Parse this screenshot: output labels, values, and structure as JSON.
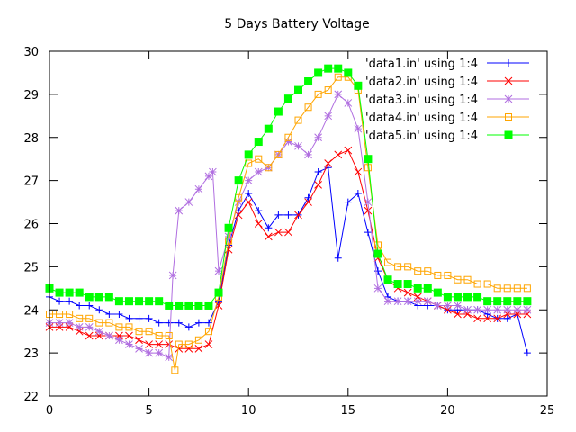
{
  "chart_data": {
    "type": "line",
    "title": "5 Days Battery Voltage",
    "xlabel": "",
    "ylabel": "",
    "xlim": [
      0,
      25
    ],
    "ylim": [
      22,
      30
    ],
    "xticks": [
      "0",
      "5",
      "10",
      "15",
      "20",
      "25"
    ],
    "yticks": [
      "22",
      "23",
      "24",
      "25",
      "26",
      "27",
      "28",
      "29",
      "30"
    ],
    "grid": false,
    "legend_position": "top-right",
    "series": [
      {
        "name": "'data1.in' using 1:4",
        "color": "#0000ff",
        "marker": "plus",
        "points": [
          [
            0,
            24.3
          ],
          [
            0.5,
            24.2
          ],
          [
            1,
            24.2
          ],
          [
            1.5,
            24.1
          ],
          [
            2,
            24.1
          ],
          [
            2.5,
            24.0
          ],
          [
            3,
            23.9
          ],
          [
            3.5,
            23.9
          ],
          [
            4,
            23.8
          ],
          [
            4.5,
            23.8
          ],
          [
            5,
            23.8
          ],
          [
            5.5,
            23.7
          ],
          [
            6,
            23.7
          ],
          [
            6.5,
            23.7
          ],
          [
            7,
            23.6
          ],
          [
            7.5,
            23.7
          ],
          [
            8,
            23.7
          ],
          [
            8.5,
            24.2
          ],
          [
            9,
            25.5
          ],
          [
            9.5,
            26.3
          ],
          [
            10,
            26.7
          ],
          [
            10.5,
            26.3
          ],
          [
            11,
            25.9
          ],
          [
            11.5,
            26.2
          ],
          [
            12,
            26.2
          ],
          [
            12.5,
            26.2
          ],
          [
            13,
            26.6
          ],
          [
            13.5,
            27.2
          ],
          [
            14,
            27.3
          ],
          [
            14.5,
            25.2
          ],
          [
            15,
            26.5
          ],
          [
            15.5,
            26.7
          ],
          [
            16,
            25.8
          ],
          [
            16.5,
            24.9
          ],
          [
            17,
            24.3
          ],
          [
            17.5,
            24.2
          ],
          [
            18,
            24.2
          ],
          [
            18.5,
            24.1
          ],
          [
            19,
            24.1
          ],
          [
            19.5,
            24.1
          ],
          [
            20,
            24.0
          ],
          [
            20.5,
            24.0
          ],
          [
            21,
            24.0
          ],
          [
            21.5,
            24.0
          ],
          [
            22,
            23.9
          ],
          [
            22.5,
            23.8
          ],
          [
            23,
            23.8
          ],
          [
            23.5,
            23.9
          ],
          [
            24,
            23.0
          ]
        ]
      },
      {
        "name": "'data2.in' using 1:4",
        "color": "#ff0000",
        "marker": "cross",
        "points": [
          [
            0,
            23.6
          ],
          [
            0.5,
            23.6
          ],
          [
            1,
            23.6
          ],
          [
            1.5,
            23.5
          ],
          [
            2,
            23.4
          ],
          [
            2.5,
            23.4
          ],
          [
            3,
            23.4
          ],
          [
            3.5,
            23.4
          ],
          [
            4,
            23.4
          ],
          [
            4.5,
            23.3
          ],
          [
            5,
            23.2
          ],
          [
            5.5,
            23.2
          ],
          [
            6,
            23.2
          ],
          [
            6.5,
            23.1
          ],
          [
            7,
            23.1
          ],
          [
            7.5,
            23.1
          ],
          [
            8,
            23.2
          ],
          [
            8.5,
            24.1
          ],
          [
            9,
            25.4
          ],
          [
            9.5,
            26.2
          ],
          [
            10,
            26.5
          ],
          [
            10.5,
            26.0
          ],
          [
            11,
            25.7
          ],
          [
            11.5,
            25.8
          ],
          [
            12,
            25.8
          ],
          [
            12.5,
            26.2
          ],
          [
            13,
            26.5
          ],
          [
            13.5,
            26.9
          ],
          [
            14,
            27.4
          ],
          [
            14.5,
            27.6
          ],
          [
            15,
            27.7
          ],
          [
            15.5,
            27.2
          ],
          [
            16,
            26.3
          ],
          [
            16.5,
            25.2
          ],
          [
            17,
            24.7
          ],
          [
            17.5,
            24.5
          ],
          [
            18,
            24.4
          ],
          [
            18.5,
            24.3
          ],
          [
            19,
            24.2
          ],
          [
            19.5,
            24.1
          ],
          [
            20,
            24.0
          ],
          [
            20.5,
            23.9
          ],
          [
            21,
            23.9
          ],
          [
            21.5,
            23.8
          ],
          [
            22,
            23.8
          ],
          [
            22.5,
            23.8
          ],
          [
            23,
            23.9
          ],
          [
            23.5,
            23.9
          ],
          [
            24,
            23.9
          ]
        ]
      },
      {
        "name": "'data3.in' using 1:4",
        "color": "#b06ee0",
        "marker": "star",
        "points": [
          [
            0,
            23.7
          ],
          [
            0.5,
            23.7
          ],
          [
            1,
            23.7
          ],
          [
            1.5,
            23.6
          ],
          [
            2,
            23.6
          ],
          [
            2.5,
            23.5
          ],
          [
            3,
            23.4
          ],
          [
            3.5,
            23.3
          ],
          [
            4,
            23.2
          ],
          [
            4.5,
            23.1
          ],
          [
            5,
            23.0
          ],
          [
            5.5,
            23.0
          ],
          [
            6,
            22.9
          ],
          [
            6.2,
            24.8
          ],
          [
            6.5,
            26.3
          ],
          [
            7,
            26.5
          ],
          [
            7.5,
            26.8
          ],
          [
            8,
            27.1
          ],
          [
            8.2,
            27.2
          ],
          [
            8.5,
            24.9
          ],
          [
            9,
            25.7
          ],
          [
            9.5,
            26.5
          ],
          [
            10,
            27.0
          ],
          [
            10.5,
            27.2
          ],
          [
            11,
            27.3
          ],
          [
            11.5,
            27.6
          ],
          [
            12,
            27.9
          ],
          [
            12.5,
            27.8
          ],
          [
            13,
            27.6
          ],
          [
            13.5,
            28.0
          ],
          [
            14,
            28.5
          ],
          [
            14.5,
            29.0
          ],
          [
            15,
            28.8
          ],
          [
            15.5,
            28.2
          ],
          [
            16,
            26.5
          ],
          [
            16.5,
            24.5
          ],
          [
            17,
            24.2
          ],
          [
            17.5,
            24.2
          ],
          [
            18,
            24.2
          ],
          [
            18.5,
            24.2
          ],
          [
            19,
            24.2
          ],
          [
            19.5,
            24.1
          ],
          [
            20,
            24.1
          ],
          [
            20.5,
            24.1
          ],
          [
            21,
            24.0
          ],
          [
            21.5,
            24.0
          ],
          [
            22,
            24.0
          ],
          [
            22.5,
            24.0
          ],
          [
            23,
            24.0
          ],
          [
            23.5,
            24.0
          ],
          [
            24,
            24.0
          ]
        ]
      },
      {
        "name": "'data4.in' using 1:4",
        "color": "#ffa500",
        "marker": "box",
        "points": [
          [
            0,
            23.9
          ],
          [
            0.5,
            23.9
          ],
          [
            1,
            23.9
          ],
          [
            1.5,
            23.8
          ],
          [
            2,
            23.8
          ],
          [
            2.5,
            23.7
          ],
          [
            3,
            23.7
          ],
          [
            3.5,
            23.6
          ],
          [
            4,
            23.6
          ],
          [
            4.5,
            23.5
          ],
          [
            5,
            23.5
          ],
          [
            5.5,
            23.4
          ],
          [
            6,
            23.4
          ],
          [
            6.3,
            22.6
          ],
          [
            6.5,
            23.2
          ],
          [
            7,
            23.2
          ],
          [
            7.5,
            23.3
          ],
          [
            8,
            23.5
          ],
          [
            8.5,
            24.3
          ],
          [
            9,
            25.6
          ],
          [
            9.5,
            26.6
          ],
          [
            10,
            27.4
          ],
          [
            10.5,
            27.5
          ],
          [
            11,
            27.3
          ],
          [
            11.5,
            27.6
          ],
          [
            12,
            28.0
          ],
          [
            12.5,
            28.4
          ],
          [
            13,
            28.7
          ],
          [
            13.5,
            29.0
          ],
          [
            14,
            29.1
          ],
          [
            14.5,
            29.4
          ],
          [
            15,
            29.4
          ],
          [
            15.5,
            29.1
          ],
          [
            16,
            27.3
          ],
          [
            16.5,
            25.5
          ],
          [
            17,
            25.1
          ],
          [
            17.5,
            25.0
          ],
          [
            18,
            25.0
          ],
          [
            18.5,
            24.9
          ],
          [
            19,
            24.9
          ],
          [
            19.5,
            24.8
          ],
          [
            20,
            24.8
          ],
          [
            20.5,
            24.7
          ],
          [
            21,
            24.7
          ],
          [
            21.5,
            24.6
          ],
          [
            22,
            24.6
          ],
          [
            22.5,
            24.5
          ],
          [
            23,
            24.5
          ],
          [
            23.5,
            24.5
          ],
          [
            24,
            24.5
          ]
        ]
      },
      {
        "name": "'data5.in' using 1:4",
        "color": "#00ff00",
        "marker": "filled-box",
        "points": [
          [
            0,
            24.5
          ],
          [
            0.5,
            24.4
          ],
          [
            1,
            24.4
          ],
          [
            1.5,
            24.4
          ],
          [
            2,
            24.3
          ],
          [
            2.5,
            24.3
          ],
          [
            3,
            24.3
          ],
          [
            3.5,
            24.2
          ],
          [
            4,
            24.2
          ],
          [
            4.5,
            24.2
          ],
          [
            5,
            24.2
          ],
          [
            5.5,
            24.2
          ],
          [
            6,
            24.1
          ],
          [
            6.5,
            24.1
          ],
          [
            7,
            24.1
          ],
          [
            7.5,
            24.1
          ],
          [
            8,
            24.1
          ],
          [
            8.5,
            24.4
          ],
          [
            9,
            25.9
          ],
          [
            9.5,
            27.0
          ],
          [
            10,
            27.6
          ],
          [
            10.5,
            27.9
          ],
          [
            11,
            28.2
          ],
          [
            11.5,
            28.6
          ],
          [
            12,
            28.9
          ],
          [
            12.5,
            29.1
          ],
          [
            13,
            29.3
          ],
          [
            13.5,
            29.5
          ],
          [
            14,
            29.6
          ],
          [
            14.5,
            29.6
          ],
          [
            15,
            29.5
          ],
          [
            15.5,
            29.2
          ],
          [
            16,
            27.5
          ],
          [
            16.5,
            25.3
          ],
          [
            17,
            24.7
          ],
          [
            17.5,
            24.6
          ],
          [
            18,
            24.6
          ],
          [
            18.5,
            24.5
          ],
          [
            19,
            24.5
          ],
          [
            19.5,
            24.4
          ],
          [
            20,
            24.3
          ],
          [
            20.5,
            24.3
          ],
          [
            21,
            24.3
          ],
          [
            21.5,
            24.3
          ],
          [
            22,
            24.2
          ],
          [
            22.5,
            24.2
          ],
          [
            23,
            24.2
          ],
          [
            23.5,
            24.2
          ],
          [
            24,
            24.2
          ]
        ]
      }
    ]
  }
}
